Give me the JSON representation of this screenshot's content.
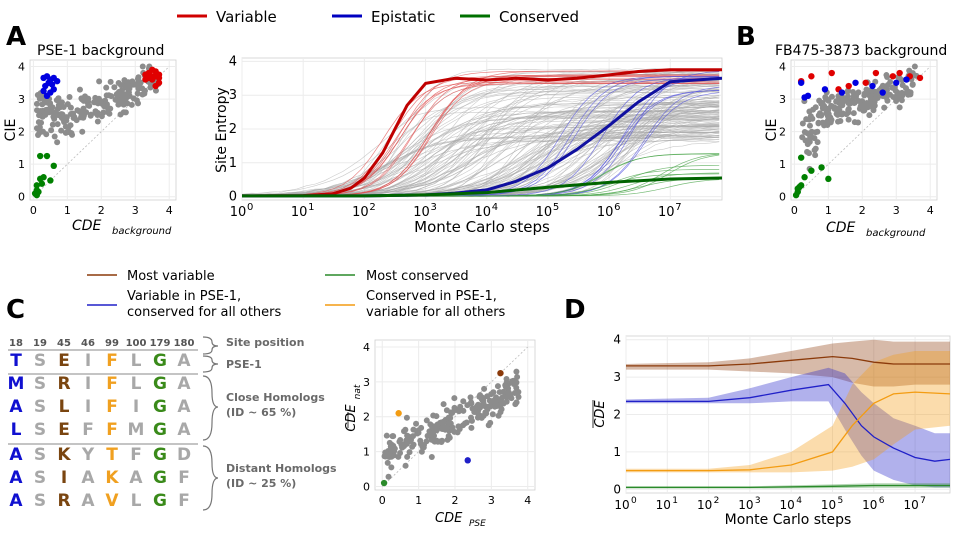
{
  "legend_top": [
    {
      "label": "Variable",
      "color": "#d00000"
    },
    {
      "label": "Epistatic",
      "color": "#0000c0"
    },
    {
      "label": "Conserved",
      "color": "#007000"
    }
  ],
  "panels": {
    "A": "A",
    "B": "B",
    "C": "C",
    "D": "D"
  },
  "legend_cd": {
    "most_variable": {
      "label": "Most variable",
      "color": "#8b3a0a"
    },
    "most_conserved": {
      "label": "Most conserved",
      "color": "#2a8a2a"
    },
    "var_pse": {
      "line1": "Variable in PSE-1,",
      "line2": "conserved for all others",
      "color": "#2020c8"
    },
    "cons_pse": {
      "line1": "Conserved in PSE-1,",
      "line2": "variable for all others",
      "color": "#f39c12"
    }
  },
  "alignment": {
    "positions": [
      "18",
      "19",
      "45",
      "46",
      "99",
      "100",
      "179",
      "180"
    ],
    "rows": [
      [
        "T",
        "S",
        "E",
        "I",
        "F",
        "L",
        "G",
        "A"
      ],
      [
        "M",
        "S",
        "R",
        "I",
        "F",
        "L",
        "G",
        "A"
      ],
      [
        "A",
        "S",
        "L",
        "I",
        "F",
        "I",
        "G",
        "A"
      ],
      [
        "L",
        "S",
        "E",
        "F",
        "F",
        "M",
        "G",
        "A"
      ],
      [
        "A",
        "S",
        "K",
        "Y",
        "T",
        "F",
        "G",
        "D"
      ],
      [
        "A",
        "S",
        "I",
        "A",
        "K",
        "A",
        "G",
        "F"
      ],
      [
        "A",
        "S",
        "R",
        "A",
        "V",
        "L",
        "G",
        "F"
      ]
    ],
    "column_colors": [
      "#1010d0",
      "#a8a8a8",
      "#7a4510",
      "#a8a8a8",
      "#f0a020",
      "#a8a8a8",
      "#3a8a1a",
      "#a8a8a8"
    ],
    "labels": {
      "site_position": "Site position",
      "pse1": "PSE-1",
      "close": "Close Homologs",
      "close_id": "(ID ~ 65 %)",
      "distant": "Distant Homologs",
      "distant_id": "(ID ~ 25 %)"
    }
  },
  "chart_data": [
    {
      "id": "A_scatter",
      "type": "scatter",
      "title": "PSE-1 background",
      "xlabel": "CDE",
      "xlabel_sub": "background",
      "ylabel": "CIE",
      "xlim": [
        -0.1,
        4.2
      ],
      "ylim": [
        -0.1,
        4.2
      ],
      "xticks": [
        0,
        1,
        2,
        3,
        4
      ],
      "yticks": [
        0,
        1,
        2,
        3,
        4
      ],
      "grey_count": 230,
      "series": [
        {
          "name": "Variable",
          "color": "#e00000",
          "x": [
            3.3,
            3.4,
            3.5,
            3.6,
            3.7,
            3.4,
            3.5,
            3.6,
            3.7,
            3.5,
            3.3,
            3.6,
            3.4,
            3.7
          ],
          "y": [
            3.75,
            3.8,
            3.7,
            3.85,
            3.75,
            3.65,
            3.6,
            3.7,
            3.5,
            3.9,
            3.6,
            3.4,
            3.8,
            3.65
          ]
        },
        {
          "name": "Epistatic",
          "color": "#0000e0",
          "x": [
            0.3,
            0.4,
            0.5,
            0.6,
            0.35,
            0.45,
            0.55,
            0.5,
            0.4,
            0.6,
            0.7,
            0.3
          ],
          "y": [
            3.65,
            3.7,
            3.6,
            3.65,
            3.4,
            3.5,
            3.45,
            3.2,
            3.1,
            3.3,
            3.55,
            3.25
          ]
        },
        {
          "name": "Conserved",
          "color": "#008000",
          "x": [
            0.05,
            0.1,
            0.15,
            0.1,
            0.2,
            0.3,
            0.5,
            0.6,
            0.2,
            0.4,
            0.1,
            0.25
          ],
          "y": [
            0.1,
            0.2,
            0.15,
            0.35,
            0.55,
            0.6,
            0.5,
            0.95,
            1.25,
            1.25,
            0.05,
            0.4
          ]
        }
      ]
    },
    {
      "id": "A_main",
      "type": "line",
      "xlabel": "Monte Carlo steps",
      "ylabel": "Site Entropy",
      "xscale": "log",
      "xlim": [
        1,
        70000000.0
      ],
      "ylim": [
        -0.1,
        4.1
      ],
      "xticks": [
        "10^0",
        "10^1",
        "10^2",
        "10^3",
        "10^4",
        "10^5",
        "10^6",
        "10^7"
      ],
      "yticks": [
        0,
        1,
        2,
        3,
        4
      ],
      "series": [
        {
          "name": "Variable",
          "color": "#c00000",
          "x": [
            1,
            10,
            30,
            60,
            100,
            200,
            500,
            1000,
            3000,
            10000,
            30000,
            100000,
            300000,
            1000000,
            3000000,
            10000000,
            70000000
          ],
          "y": [
            0.02,
            0.03,
            0.08,
            0.25,
            0.55,
            1.3,
            2.7,
            3.35,
            3.5,
            3.45,
            3.5,
            3.45,
            3.5,
            3.6,
            3.7,
            3.75,
            3.75
          ]
        },
        {
          "name": "Epistatic",
          "color": "#1010a0",
          "x": [
            1,
            100,
            1000,
            3000,
            10000,
            30000,
            100000,
            300000,
            1000000,
            3000000,
            10000000,
            70000000
          ],
          "y": [
            0.02,
            0.02,
            0.05,
            0.1,
            0.2,
            0.45,
            0.85,
            1.4,
            2.1,
            2.8,
            3.4,
            3.5
          ]
        },
        {
          "name": "Conserved",
          "color": "#006400",
          "x": [
            1,
            100,
            1000,
            10000,
            100000,
            1000000,
            10000000,
            70000000
          ],
          "y": [
            0.02,
            0.02,
            0.05,
            0.12,
            0.28,
            0.42,
            0.52,
            0.55
          ]
        }
      ]
    },
    {
      "id": "B_scatter",
      "type": "scatter",
      "title": "FB475-3873 background",
      "xlabel": "CDE",
      "xlabel_sub": "background",
      "ylabel": "CIE",
      "xlim": [
        -0.1,
        4.2
      ],
      "ylim": [
        -0.1,
        4.2
      ],
      "xticks": [
        0,
        1,
        2,
        3,
        4
      ],
      "yticks": [
        0,
        1,
        2,
        3,
        4
      ],
      "grey_count": 200,
      "series": [
        {
          "name": "Variable",
          "color": "#e00000",
          "x": [
            0.5,
            1.1,
            1.6,
            2.4,
            2.9,
            3.1,
            3.4,
            3.7,
            0.2,
            1.3,
            2.1
          ],
          "y": [
            3.7,
            3.8,
            3.4,
            3.8,
            3.7,
            3.8,
            3.7,
            3.65,
            3.55,
            3.3,
            3.5
          ]
        },
        {
          "name": "Epistatic",
          "color": "#0000e0",
          "x": [
            0.2,
            0.4,
            0.9,
            1.4,
            2.3,
            2.6,
            3.0,
            3.3,
            0.3,
            1.8
          ],
          "y": [
            3.5,
            3.1,
            3.3,
            3.2,
            3.4,
            3.2,
            3.5,
            3.6,
            3.05,
            3.5
          ]
        },
        {
          "name": "Conserved",
          "color": "#008000",
          "x": [
            0.05,
            0.1,
            0.15,
            0.2,
            0.3,
            0.5,
            0.8,
            1.0,
            0.2,
            0.1
          ],
          "y": [
            0.05,
            0.15,
            0.3,
            0.35,
            0.6,
            0.8,
            0.9,
            0.55,
            1.2,
            0.25
          ]
        }
      ]
    },
    {
      "id": "C_scatter",
      "type": "scatter",
      "xlabel": "CDE",
      "xlabel_sub": "PSE",
      "ylabel": "CDE",
      "ylabel_sub": "nat",
      "xlim": [
        -0.2,
        4.2
      ],
      "ylim": [
        -0.1,
        4.2
      ],
      "xticks": [
        0,
        1,
        2,
        3,
        4
      ],
      "yticks": [
        0,
        1,
        2,
        3,
        4
      ],
      "grey_count": 230,
      "series": [
        {
          "name": "Most variable",
          "color": "#8b3a0a",
          "x": [
            3.25
          ],
          "y": [
            3.25
          ]
        },
        {
          "name": "Variable in PSE-1, conserved for all others",
          "color": "#2020c8",
          "x": [
            2.35
          ],
          "y": [
            0.75
          ]
        },
        {
          "name": "Conserved in PSE-1, variable for all others",
          "color": "#f39c12",
          "x": [
            0.45
          ],
          "y": [
            2.1
          ]
        },
        {
          "name": "Most conserved",
          "color": "#2a8a2a",
          "x": [
            0.05
          ],
          "y": [
            0.1
          ]
        }
      ]
    },
    {
      "id": "D",
      "type": "area",
      "xlabel": "Monte Carlo steps",
      "ylabel": "CDE",
      "xscale": "log",
      "xlim": [
        1,
        70000000.0
      ],
      "ylim": [
        -0.1,
        4.1
      ],
      "xticks": [
        "10^0",
        "10^1",
        "10^2",
        "10^3",
        "10^4",
        "10^5",
        "10^6",
        "10^7"
      ],
      "yticks": [
        0,
        1,
        2,
        3,
        4
      ],
      "series": [
        {
          "name": "Most variable",
          "color": "#8b3a0a",
          "x": [
            1,
            100,
            1000,
            10000,
            100000,
            300000,
            1000000,
            3000000,
            10000000,
            70000000
          ],
          "y": [
            3.3,
            3.3,
            3.35,
            3.45,
            3.55,
            3.5,
            3.4,
            3.35,
            3.35,
            3.35
          ],
          "lo": [
            3.2,
            3.2,
            3.15,
            3.1,
            3.0,
            2.85,
            2.75,
            2.75,
            2.8,
            2.8
          ],
          "hi": [
            3.35,
            3.4,
            3.5,
            3.7,
            3.9,
            3.95,
            4.0,
            3.95,
            3.95,
            3.95
          ]
        },
        {
          "name": "Variable in PSE-1, conserved for all others",
          "color": "#2020c8",
          "x": [
            1,
            100,
            1000,
            10000,
            80000,
            200000,
            500000,
            1000000,
            3000000,
            10000000,
            30000000,
            70000000
          ],
          "y": [
            2.35,
            2.35,
            2.45,
            2.65,
            2.8,
            2.3,
            1.7,
            1.4,
            1.1,
            0.85,
            0.75,
            0.8
          ],
          "lo": [
            2.3,
            2.3,
            2.3,
            2.35,
            2.35,
            1.6,
            0.9,
            0.5,
            0.25,
            0.1,
            0.05,
            0.05
          ],
          "hi": [
            2.4,
            2.45,
            2.7,
            3.0,
            3.25,
            3.1,
            2.6,
            2.3,
            1.9,
            1.7,
            1.5,
            1.5
          ]
        },
        {
          "name": "Conserved in PSE-1, variable for all others",
          "color": "#f39c12",
          "x": [
            1,
            100,
            1000,
            10000,
            100000,
            300000,
            1000000,
            3000000,
            10000000,
            70000000
          ],
          "y": [
            0.5,
            0.5,
            0.52,
            0.65,
            1.0,
            1.7,
            2.3,
            2.55,
            2.6,
            2.55
          ],
          "lo": [
            0.45,
            0.45,
            0.45,
            0.45,
            0.5,
            0.6,
            0.8,
            1.2,
            1.6,
            1.7
          ],
          "hi": [
            0.55,
            0.55,
            0.65,
            1.0,
            1.7,
            2.8,
            3.4,
            3.6,
            3.7,
            3.7
          ]
        },
        {
          "name": "Most conserved",
          "color": "#2a8a2a",
          "x": [
            1,
            1000,
            100000,
            1000000,
            10000000,
            70000000
          ],
          "y": [
            0.05,
            0.05,
            0.08,
            0.1,
            0.1,
            0.1
          ],
          "lo": [
            0.02,
            0.02,
            0.03,
            0.04,
            0.04,
            0.04
          ],
          "hi": [
            0.08,
            0.08,
            0.13,
            0.16,
            0.16,
            0.16
          ]
        }
      ]
    }
  ]
}
